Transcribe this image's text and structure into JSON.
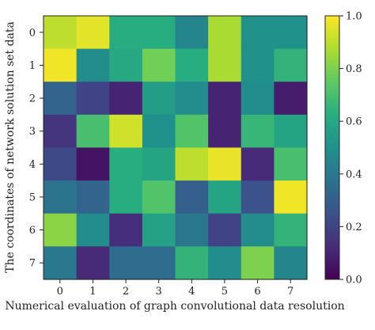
{
  "chart_data": {
    "type": "heatmap",
    "title": "",
    "xlabel": "Numerical evaluation of graph convolutional data resolution",
    "ylabel": "The coordinates of network solution set data",
    "x_ticks": [
      "0",
      "1",
      "2",
      "3",
      "4",
      "5",
      "6",
      "7"
    ],
    "y_ticks": [
      "0",
      "1",
      "2",
      "3",
      "4",
      "5",
      "6",
      "7"
    ],
    "values": [
      [
        0.9,
        0.96,
        0.62,
        0.62,
        0.45,
        0.87,
        0.5,
        0.5
      ],
      [
        0.98,
        0.48,
        0.6,
        0.78,
        0.62,
        0.87,
        0.5,
        0.65
      ],
      [
        0.32,
        0.2,
        0.1,
        0.55,
        0.48,
        0.1,
        0.48,
        0.08
      ],
      [
        0.15,
        0.7,
        0.93,
        0.5,
        0.72,
        0.1,
        0.66,
        0.58
      ],
      [
        0.22,
        0.05,
        0.62,
        0.58,
        0.9,
        0.97,
        0.12,
        0.7
      ],
      [
        0.38,
        0.32,
        0.62,
        0.72,
        0.3,
        0.58,
        0.25,
        0.98
      ],
      [
        0.82,
        0.48,
        0.13,
        0.57,
        0.4,
        0.2,
        0.48,
        0.65
      ],
      [
        0.4,
        0.12,
        0.35,
        0.35,
        0.65,
        0.48,
        0.8,
        0.45
      ]
    ],
    "colorbar": {
      "range": [
        0.0,
        1.0
      ],
      "ticks": [
        "0.0",
        "0.2",
        "0.4",
        "0.6",
        "0.8",
        "1.0"
      ],
      "colormap": "viridis"
    },
    "grid": false
  }
}
